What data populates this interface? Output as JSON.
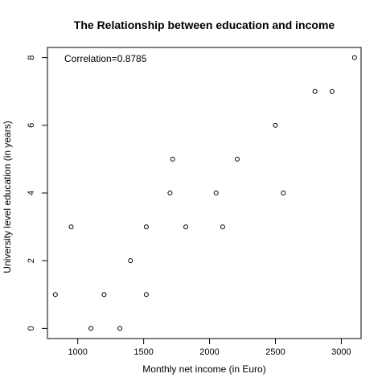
{
  "chart_data": {
    "type": "scatter",
    "title": "The Relationship between education and income",
    "xlabel": "Monthly net income (in Euro)",
    "ylabel": "University level education (in years)",
    "annotation": "Correlation=0.8785",
    "xlim": [
      770,
      3150
    ],
    "ylim": [
      -0.3,
      8.3
    ],
    "xticks": [
      1000,
      1500,
      2000,
      2500,
      3000
    ],
    "yticks": [
      0,
      2,
      4,
      6,
      8
    ],
    "grid": false,
    "legend": "none",
    "points": [
      {
        "x": 830,
        "y": 1
      },
      {
        "x": 950,
        "y": 3
      },
      {
        "x": 1100,
        "y": 0
      },
      {
        "x": 1200,
        "y": 1
      },
      {
        "x": 1320,
        "y": 0
      },
      {
        "x": 1400,
        "y": 2
      },
      {
        "x": 1520,
        "y": 1
      },
      {
        "x": 1520,
        "y": 3
      },
      {
        "x": 1700,
        "y": 4
      },
      {
        "x": 1720,
        "y": 5
      },
      {
        "x": 1820,
        "y": 3
      },
      {
        "x": 2050,
        "y": 4
      },
      {
        "x": 2100,
        "y": 3
      },
      {
        "x": 2210,
        "y": 5
      },
      {
        "x": 2500,
        "y": 6
      },
      {
        "x": 2560,
        "y": 4
      },
      {
        "x": 2800,
        "y": 7
      },
      {
        "x": 2930,
        "y": 7
      },
      {
        "x": 3100,
        "y": 8
      }
    ]
  }
}
